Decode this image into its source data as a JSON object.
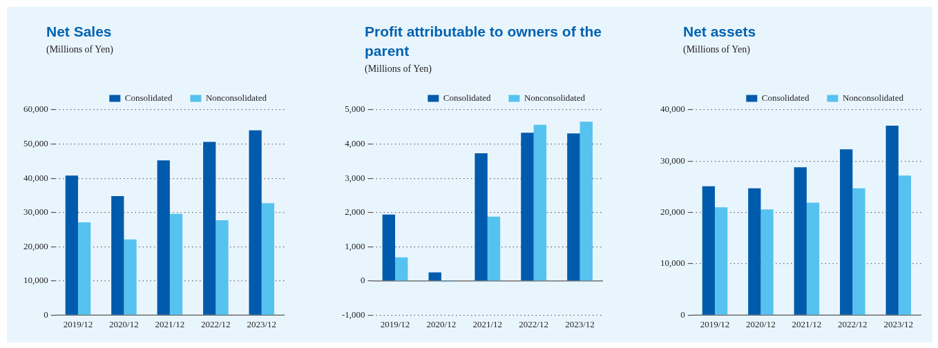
{
  "chart_data": [
    {
      "type": "bar",
      "title": "Net Sales",
      "subtitle": "(Millions of Yen)",
      "categories": [
        "2019/12",
        "2020/12",
        "2021/12",
        "2022/12",
        "2023/12"
      ],
      "series": [
        {
          "name": "Consolidated",
          "color": "#005bac",
          "values": [
            40800,
            34800,
            45200,
            50600,
            54000
          ]
        },
        {
          "name": "Nonconsolidated",
          "color": "#56c2f0",
          "values": [
            27100,
            22100,
            29600,
            27700,
            32700
          ]
        }
      ],
      "ylim": [
        0,
        60000
      ],
      "yticks": [
        {
          "value": 0,
          "label": "0"
        },
        {
          "value": 10000,
          "label": "10,000"
        },
        {
          "value": 20000,
          "label": "20,000"
        },
        {
          "value": 30000,
          "label": "30,000"
        },
        {
          "value": 40000,
          "label": "40,000"
        },
        {
          "value": 50000,
          "label": "50,000"
        },
        {
          "value": 60000,
          "label": "60,000"
        }
      ],
      "grid": "y",
      "legend": "top right"
    },
    {
      "type": "bar",
      "title": "Profit attributable to owners of the parent",
      "subtitle": "(Millions of Yen)",
      "categories": [
        "2019/12",
        "2020/12",
        "2021/12",
        "2022/12",
        "2023/12"
      ],
      "series": [
        {
          "name": "Consolidated",
          "color": "#005bac",
          "values": [
            1940,
            250,
            3730,
            4330,
            4310
          ]
        },
        {
          "name": "Nonconsolidated",
          "color": "#56c2f0",
          "values": [
            690,
            -30,
            1880,
            4560,
            4650
          ]
        }
      ],
      "ylim": [
        -1000,
        5000
      ],
      "yticks": [
        {
          "value": -1000,
          "label": "-1,000"
        },
        {
          "value": 0,
          "label": "0"
        },
        {
          "value": 1000,
          "label": "1,000"
        },
        {
          "value": 2000,
          "label": "2,000"
        },
        {
          "value": 3000,
          "label": "3,000"
        },
        {
          "value": 4000,
          "label": "4,000"
        },
        {
          "value": 5000,
          "label": "5,000"
        }
      ],
      "grid": "y",
      "legend": "top right"
    },
    {
      "type": "bar",
      "title": "Net assets",
      "subtitle": "(Millions of Yen)",
      "categories": [
        "2019/12",
        "2020/12",
        "2021/12",
        "2022/12",
        "2023/12"
      ],
      "series": [
        {
          "name": "Consolidated",
          "color": "#005bac",
          "values": [
            25100,
            24700,
            28800,
            32300,
            36900
          ]
        },
        {
          "name": "Nonconsolidated",
          "color": "#56c2f0",
          "values": [
            21000,
            20600,
            21900,
            24700,
            27200
          ]
        }
      ],
      "ylim": [
        0,
        40000
      ],
      "yticks": [
        {
          "value": 0,
          "label": "0"
        },
        {
          "value": 10000,
          "label": "10,000"
        },
        {
          "value": 20000,
          "label": "20,000"
        },
        {
          "value": 30000,
          "label": "30,000"
        },
        {
          "value": 40000,
          "label": "40,000"
        }
      ],
      "grid": "y",
      "legend": "top right"
    }
  ]
}
